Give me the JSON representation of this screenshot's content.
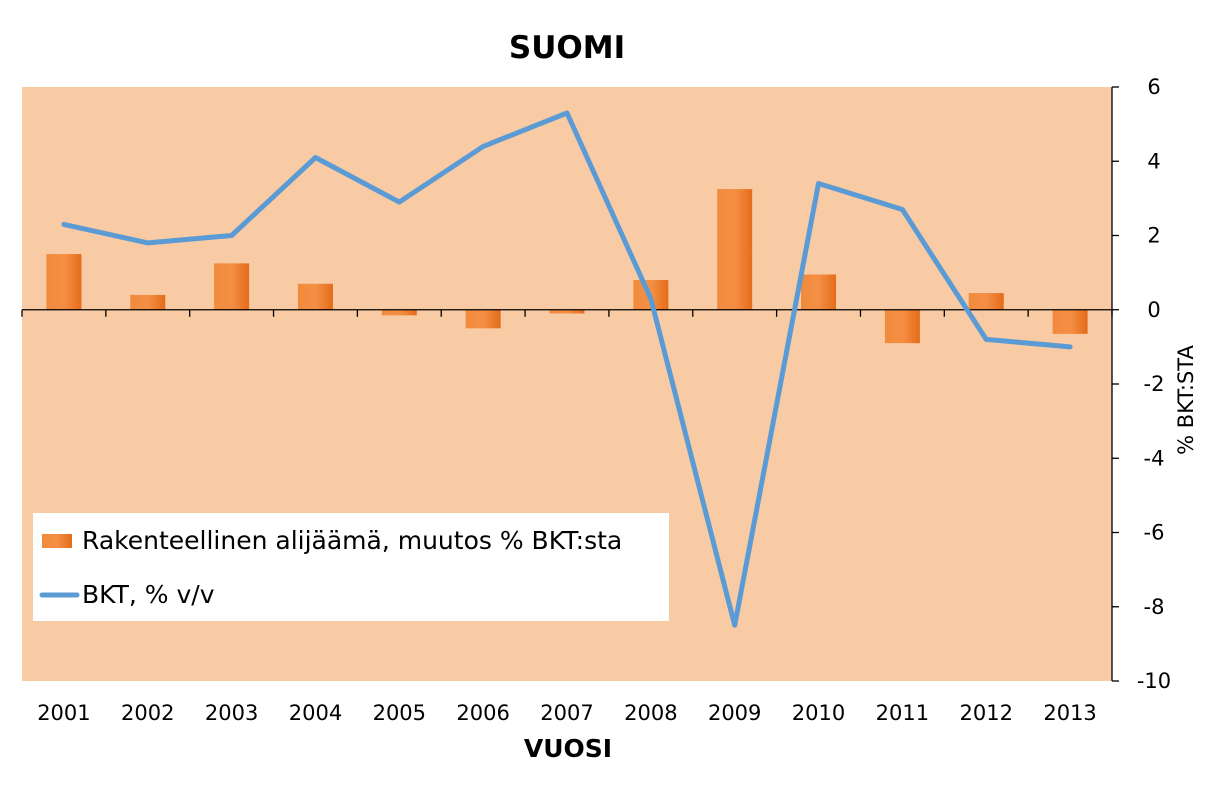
{
  "chart_data": {
    "type": "bar",
    "title": "SUOMI",
    "xlabel": "VUOSI",
    "ylabel": "% BKT:STA",
    "ylim": [
      -10,
      6
    ],
    "yticks": [
      6,
      4,
      2,
      0,
      -2,
      -4,
      -6,
      -8,
      -10
    ],
    "ytick_labels": [
      "6",
      "4",
      "2",
      "0",
      "-2",
      "-4",
      "-6",
      "-8",
      "-10"
    ],
    "y_axis_side": "right",
    "grid": false,
    "legend_position": "bottom-left",
    "categories": [
      "2001",
      "2002",
      "2003",
      "2004",
      "2005",
      "2006",
      "2007",
      "2008",
      "2009",
      "2010",
      "2011",
      "2012",
      "2013"
    ],
    "series": [
      {
        "name": "Rakenteellinen alijäämä, muutos % BKT:sta",
        "type": "bar",
        "color": "#ED7D31",
        "values": [
          1.5,
          0.4,
          1.25,
          0.7,
          -0.15,
          -0.5,
          -0.1,
          0.8,
          3.25,
          0.95,
          -0.9,
          0.45,
          -0.65
        ]
      },
      {
        "name": "BKT, % v/v",
        "type": "line",
        "color": "#5B9BD5",
        "values": [
          2.3,
          1.8,
          2.0,
          4.1,
          2.9,
          4.4,
          5.3,
          0.3,
          -8.5,
          3.4,
          2.7,
          -0.8,
          -1.0
        ]
      }
    ],
    "plot_background": "#F8CBA4"
  }
}
